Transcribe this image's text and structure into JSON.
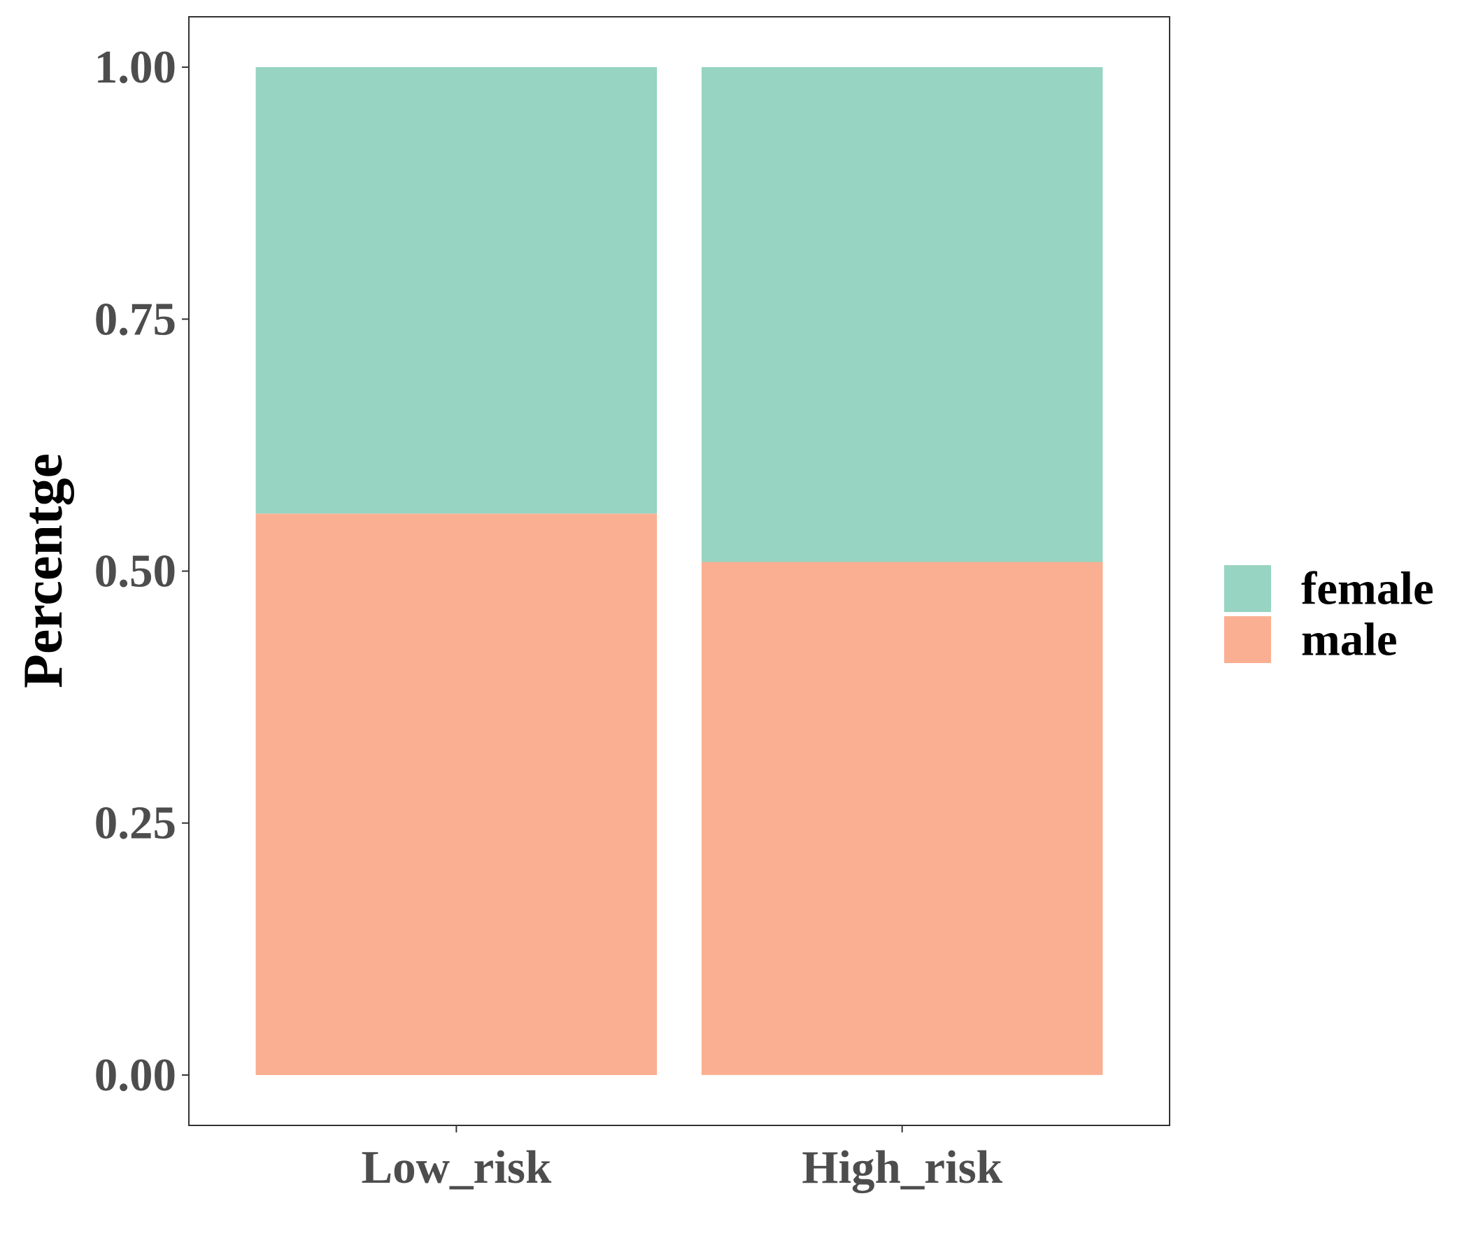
{
  "chart_data": {
    "type": "bar",
    "stacked": true,
    "title": "",
    "xlabel": "",
    "ylabel": "Percentge",
    "categories": [
      "Low_risk",
      "High_risk"
    ],
    "series": [
      {
        "name": "female",
        "values": [
          0.443,
          0.491
        ],
        "color": "#97d4c1"
      },
      {
        "name": "male",
        "values": [
          0.557,
          0.509
        ],
        "color": "#fbaf92"
      }
    ],
    "stack_order_bottom_to_top": [
      "male",
      "female"
    ],
    "ylim": [
      -0.05,
      1.05
    ],
    "yticks": [
      0,
      0.25,
      0.5,
      0.75,
      1
    ],
    "ytick_labels": [
      "0.00",
      "0.25",
      "0.50",
      "0.75",
      "1.00"
    ],
    "grid": false,
    "legend": {
      "position": "right",
      "entries": [
        "female",
        "male"
      ]
    }
  }
}
